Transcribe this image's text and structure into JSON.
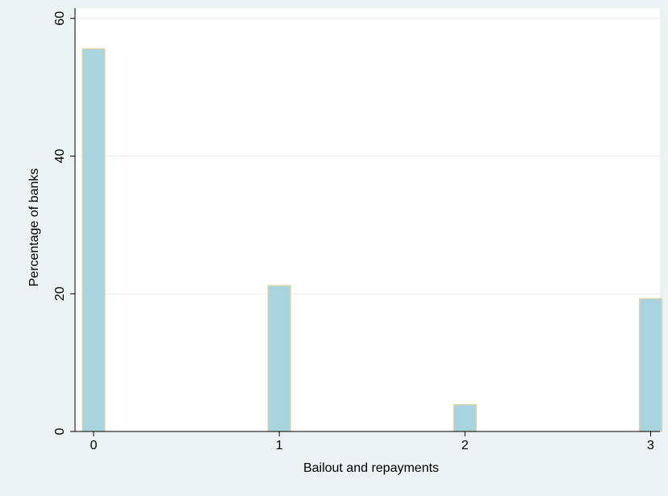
{
  "chart_data": {
    "type": "bar",
    "title": "",
    "xlabel": "Bailout and repayments",
    "ylabel": "Percentage of banks",
    "categories": [
      0,
      1,
      2,
      3
    ],
    "values": [
      55.6,
      21.2,
      3.9,
      19.3
    ],
    "xlim": [
      -0.1,
      3.05
    ],
    "ylim": [
      0,
      61.5
    ],
    "x_ticks": [
      "0",
      "1",
      "2",
      "3"
    ],
    "y_ticks": [
      "0",
      "20",
      "40",
      "60"
    ],
    "y_tick_values": [
      0,
      20,
      40,
      60
    ],
    "grid": true,
    "colors": {
      "bar_fill": "#a8d4e0",
      "bar_outline": "#e8d49a",
      "plot_background": "#ffffff",
      "outer_background": "#eaf2f3",
      "gridline": "#e6eef0",
      "axis": "#000000"
    }
  }
}
